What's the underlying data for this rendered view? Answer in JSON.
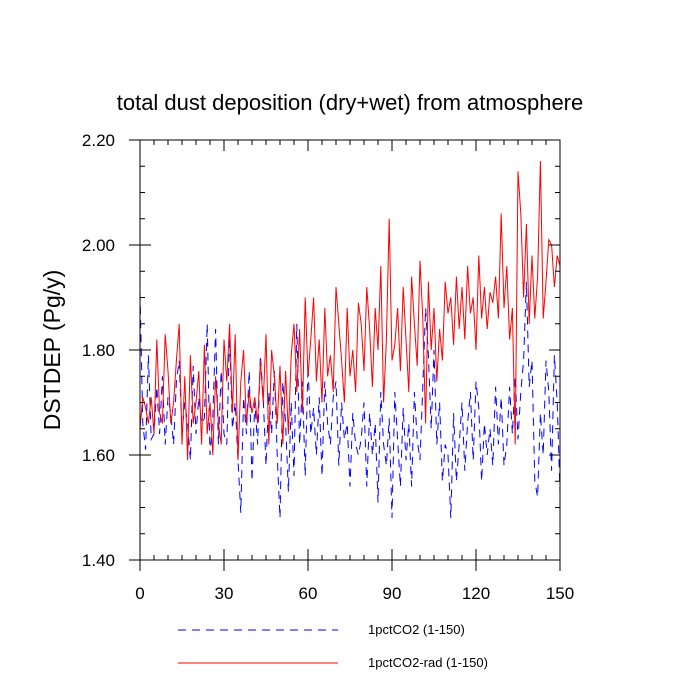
{
  "chart_data": {
    "type": "line",
    "title": "total dust deposition (dry+wet) from atmosphere",
    "xlabel": "",
    "ylabel": "DSTDEP  (Pg/y)",
    "xlim": [
      0,
      150
    ],
    "ylim": [
      1.4,
      2.2
    ],
    "x_ticks": [
      0,
      30,
      60,
      90,
      120,
      150
    ],
    "y_ticks": [
      1.4,
      1.6,
      1.8,
      2.0,
      2.2
    ],
    "x_tick_labels": [
      "0",
      "30",
      "60",
      "90",
      "120",
      "150"
    ],
    "y_tick_labels": [
      "1.40",
      "1.60",
      "1.80",
      "2.00",
      "2.20"
    ],
    "legend_position": "bottom",
    "series": [
      {
        "name": "1pctCO2 (1-150)",
        "color": "#0000ff",
        "dash": true,
        "x_start": 0,
        "values": [
          1.91,
          1.66,
          1.61,
          1.79,
          1.63,
          1.64,
          1.73,
          1.64,
          1.75,
          1.62,
          1.71,
          1.68,
          1.62,
          1.74,
          1.78,
          1.64,
          1.7,
          1.66,
          1.59,
          1.77,
          1.64,
          1.71,
          1.66,
          1.67,
          1.85,
          1.6,
          1.67,
          1.84,
          1.62,
          1.76,
          1.64,
          1.62,
          1.83,
          1.65,
          1.7,
          1.59,
          1.49,
          1.71,
          1.64,
          1.76,
          1.55,
          1.7,
          1.62,
          1.79,
          1.71,
          1.58,
          1.72,
          1.64,
          1.76,
          1.6,
          1.48,
          1.74,
          1.66,
          1.53,
          1.7,
          1.56,
          1.85,
          1.62,
          1.74,
          1.56,
          1.77,
          1.64,
          1.69,
          1.6,
          1.71,
          1.56,
          1.74,
          1.66,
          1.62,
          1.71,
          1.74,
          1.58,
          1.7,
          1.63,
          1.66,
          1.54,
          1.68,
          1.62,
          1.6,
          1.63,
          1.7,
          1.54,
          1.68,
          1.6,
          1.66,
          1.51,
          1.72,
          1.62,
          1.58,
          1.67,
          1.48,
          1.72,
          1.63,
          1.54,
          1.69,
          1.59,
          1.66,
          1.54,
          1.72,
          1.63,
          1.59,
          1.73,
          1.88,
          1.79,
          1.65,
          1.8,
          1.62,
          1.7,
          1.55,
          1.62,
          1.6,
          1.48,
          1.68,
          1.55,
          1.62,
          1.7,
          1.57,
          1.66,
          1.72,
          1.59,
          1.74,
          1.69,
          1.55,
          1.66,
          1.6,
          1.65,
          1.58,
          1.73,
          1.62,
          1.71,
          1.58,
          1.62,
          1.73,
          1.64,
          1.75,
          1.63,
          1.72,
          1.78,
          1.93,
          1.73,
          1.78,
          1.55,
          1.52,
          1.68,
          1.6,
          1.78,
          1.72,
          1.57,
          1.79,
          1.7,
          1.53
        ]
      },
      {
        "name": "1pctCO2-rad (1-150)",
        "color": "#ff0000",
        "dash": false,
        "x_start": 0,
        "values": [
          1.65,
          1.71,
          1.69,
          1.66,
          1.71,
          1.64,
          1.82,
          1.68,
          1.66,
          1.83,
          1.76,
          1.66,
          1.7,
          1.78,
          1.85,
          1.62,
          1.75,
          1.59,
          1.79,
          1.66,
          1.7,
          1.76,
          1.62,
          1.81,
          1.64,
          1.7,
          1.6,
          1.75,
          1.66,
          1.62,
          1.82,
          1.74,
          1.85,
          1.68,
          1.83,
          1.59,
          1.74,
          1.8,
          1.66,
          1.72,
          1.68,
          1.71,
          1.66,
          1.78,
          1.7,
          1.83,
          1.62,
          1.8,
          1.75,
          1.66,
          1.77,
          1.62,
          1.76,
          1.64,
          1.79,
          1.85,
          1.72,
          1.84,
          1.68,
          1.9,
          1.75,
          1.82,
          1.9,
          1.74,
          1.82,
          1.7,
          1.88,
          1.75,
          1.79,
          1.72,
          1.92,
          1.85,
          1.78,
          1.7,
          1.88,
          1.75,
          1.8,
          1.72,
          1.89,
          1.85,
          1.76,
          1.92,
          1.84,
          1.73,
          1.88,
          1.8,
          1.96,
          1.7,
          1.82,
          2.05,
          1.78,
          1.81,
          1.88,
          1.76,
          1.92,
          1.82,
          1.72,
          1.94,
          1.85,
          1.77,
          1.97,
          1.86,
          1.66,
          1.93,
          1.8,
          1.88,
          1.74,
          1.84,
          1.78,
          1.93,
          1.87,
          1.9,
          1.81,
          1.94,
          1.84,
          1.92,
          1.82,
          1.96,
          1.87,
          1.9,
          1.8,
          1.98,
          1.86,
          1.92,
          1.84,
          1.91,
          1.89,
          1.94,
          1.86,
          2.06,
          1.88,
          1.96,
          1.82,
          1.88,
          1.62,
          2.14,
          2.06,
          1.9,
          2.04,
          1.85,
          1.98,
          1.86,
          1.94,
          2.16,
          1.86,
          1.93,
          2.01,
          2.0,
          1.92,
          1.98,
          1.96
        ]
      }
    ]
  }
}
